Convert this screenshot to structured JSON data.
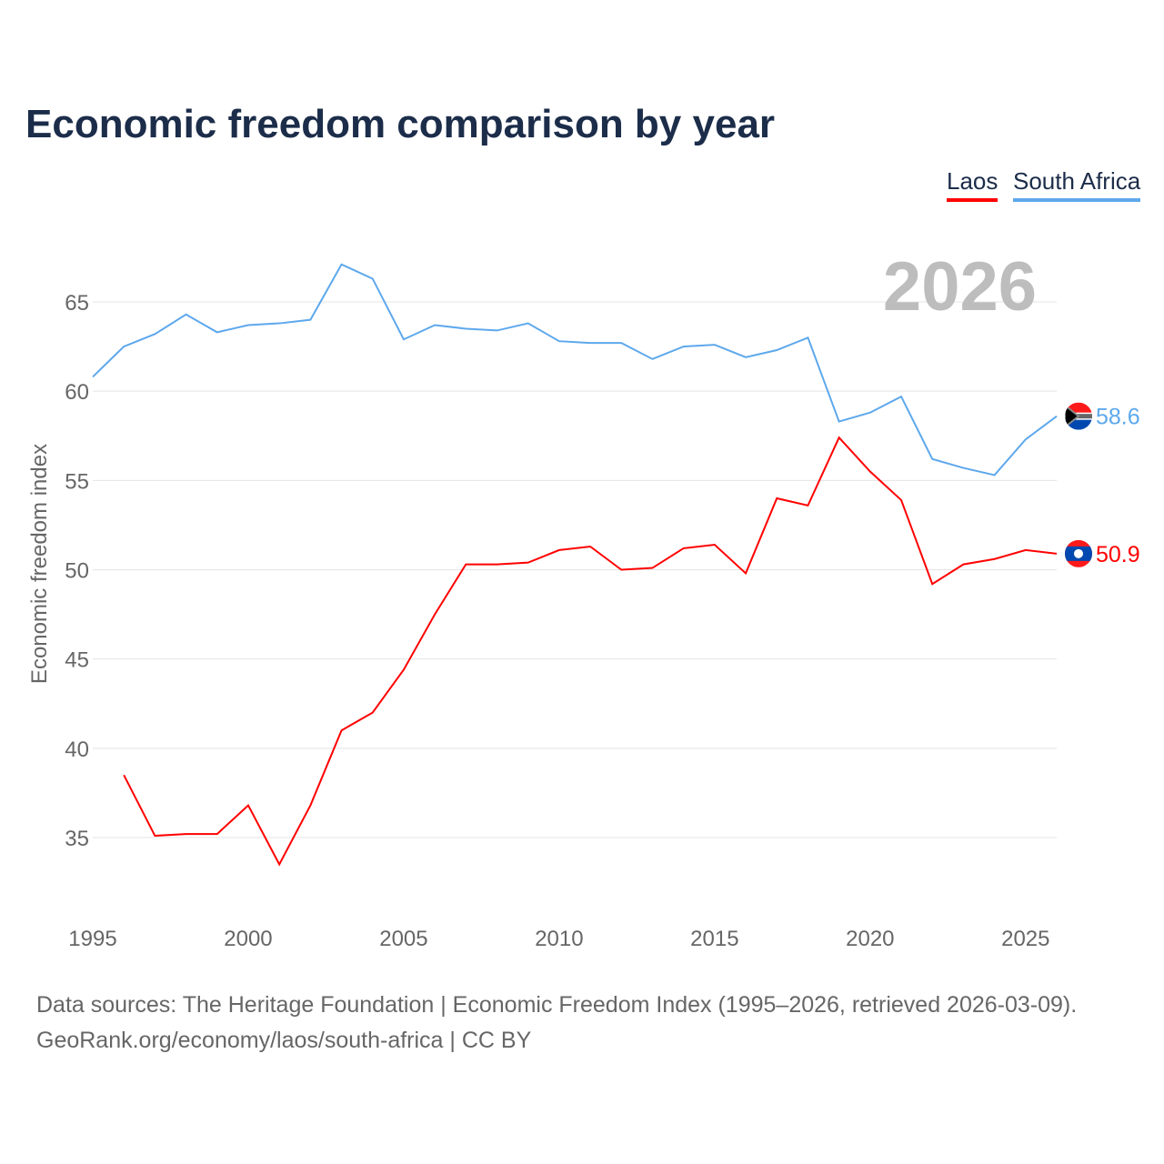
{
  "title": "Economic freedom comparison by year",
  "year_label": "2026",
  "source_line1": "Data sources: The Heritage Foundation | Economic Freedom Index (1995–2026, retrieved 2026-03-09).",
  "source_line2": "GeoRank.org/economy/laos/south-africa | CC BY",
  "chart_data": {
    "type": "line",
    "title": "Economic freedom comparison by year",
    "xlabel": "",
    "ylabel": "Economic freedom index",
    "xlim": [
      1995,
      2026
    ],
    "ylim": [
      31,
      67.5
    ],
    "xticks": [
      1995,
      2000,
      2005,
      2010,
      2015,
      2020,
      2025
    ],
    "yticks": [
      35,
      40,
      45,
      50,
      55,
      60,
      65
    ],
    "grid": true,
    "legend": "top-right",
    "series": [
      {
        "name": "Laos",
        "color": "#ff0000",
        "end_label": "50.9",
        "x": [
          1996,
          1997,
          1998,
          1999,
          2000,
          2001,
          2002,
          2003,
          2004,
          2005,
          2006,
          2007,
          2008,
          2009,
          2010,
          2011,
          2012,
          2013,
          2014,
          2015,
          2016,
          2017,
          2018,
          2019,
          2020,
          2021,
          2022,
          2023,
          2024,
          2025,
          2026
        ],
        "values": [
          38.5,
          35.1,
          35.2,
          35.2,
          36.8,
          33.5,
          36.8,
          41.0,
          42.0,
          44.4,
          47.5,
          50.3,
          50.3,
          50.4,
          51.1,
          51.3,
          50.0,
          50.1,
          51.2,
          51.4,
          49.8,
          54.0,
          53.6,
          57.4,
          55.5,
          53.9,
          49.2,
          50.3,
          50.6,
          51.1,
          50.9
        ]
      },
      {
        "name": "South Africa",
        "color": "#5da8ec",
        "end_label": "58.6",
        "x": [
          1995,
          1996,
          1997,
          1998,
          1999,
          2000,
          2001,
          2002,
          2003,
          2004,
          2005,
          2006,
          2007,
          2008,
          2009,
          2010,
          2011,
          2012,
          2013,
          2014,
          2015,
          2016,
          2017,
          2018,
          2019,
          2020,
          2021,
          2022,
          2023,
          2024,
          2025,
          2026
        ],
        "values": [
          60.8,
          62.5,
          63.2,
          64.3,
          63.3,
          63.7,
          63.8,
          64.0,
          67.1,
          66.3,
          62.9,
          63.7,
          63.5,
          63.4,
          63.8,
          62.8,
          62.7,
          62.7,
          61.8,
          62.5,
          62.6,
          61.9,
          62.3,
          63.0,
          58.3,
          58.8,
          59.7,
          56.2,
          55.7,
          55.3,
          57.3,
          58.6
        ]
      }
    ]
  }
}
